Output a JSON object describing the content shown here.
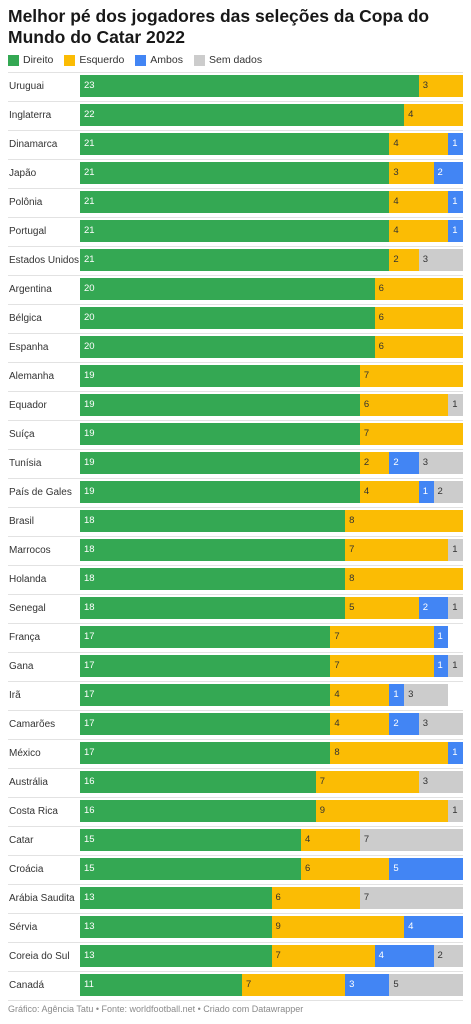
{
  "title": "Melhor pé dos jogadores das seleções da Copa do Mundo do Catar 2022",
  "footer": "Gráfico: Agência Tatu • Fonte: worldfootball.net • Criado com Datawrapper",
  "colors": {
    "Direito": "#34a853",
    "Esquerdo": "#fbbc04",
    "Ambos": "#4285f4",
    "Sem dados": "#cccccc"
  },
  "label_colors": {
    "Direito": "#ffffff",
    "Esquerdo": "#333333",
    "Ambos": "#ffffff",
    "Sem dados": "#333333"
  },
  "chart_data": {
    "type": "bar",
    "orientation": "horizontal",
    "stacked": true,
    "title": "Melhor pé dos jogadores das seleções da Copa do Mundo do Catar 2022",
    "legend": [
      "Direito",
      "Esquerdo",
      "Ambos",
      "Sem dados"
    ],
    "legend_position": "top-left",
    "xlim": [
      0,
      26
    ],
    "categories": [
      "Uruguai",
      "Inglaterra",
      "Dinamarca",
      "Japão",
      "Polônia",
      "Portugal",
      "Estados Unidos",
      "Argentina",
      "Bélgica",
      "Espanha",
      "Alemanha",
      "Equador",
      "Suíça",
      "Tunísia",
      "País de Gales",
      "Brasil",
      "Marrocos",
      "Holanda",
      "Senegal",
      "França",
      "Gana",
      "Irã",
      "Camarões",
      "México",
      "Austrália",
      "Costa Rica",
      "Catar",
      "Croácia",
      "Arábia Saudita",
      "Sérvia",
      "Coreia do Sul",
      "Canadá"
    ],
    "series": [
      {
        "name": "Direito",
        "values": [
          23,
          22,
          21,
          21,
          21,
          21,
          21,
          20,
          20,
          20,
          19,
          19,
          19,
          19,
          19,
          18,
          18,
          18,
          18,
          17,
          17,
          17,
          17,
          17,
          16,
          16,
          15,
          15,
          13,
          13,
          13,
          11
        ]
      },
      {
        "name": "Esquerdo",
        "values": [
          3,
          4,
          4,
          3,
          4,
          4,
          2,
          6,
          6,
          6,
          7,
          6,
          7,
          2,
          4,
          8,
          7,
          8,
          5,
          7,
          7,
          4,
          4,
          8,
          7,
          9,
          4,
          6,
          6,
          9,
          7,
          7
        ]
      },
      {
        "name": "Ambos",
        "values": [
          0,
          0,
          1,
          2,
          1,
          1,
          0,
          0,
          0,
          0,
          0,
          0,
          0,
          2,
          1,
          0,
          0,
          0,
          2,
          1,
          1,
          1,
          2,
          1,
          0,
          0,
          0,
          5,
          0,
          4,
          4,
          3
        ]
      },
      {
        "name": "Sem dados",
        "values": [
          0,
          0,
          0,
          0,
          0,
          0,
          3,
          0,
          0,
          0,
          0,
          1,
          0,
          3,
          2,
          0,
          1,
          0,
          1,
          0,
          1,
          3,
          3,
          0,
          3,
          1,
          7,
          0,
          7,
          0,
          2,
          5
        ]
      }
    ]
  }
}
